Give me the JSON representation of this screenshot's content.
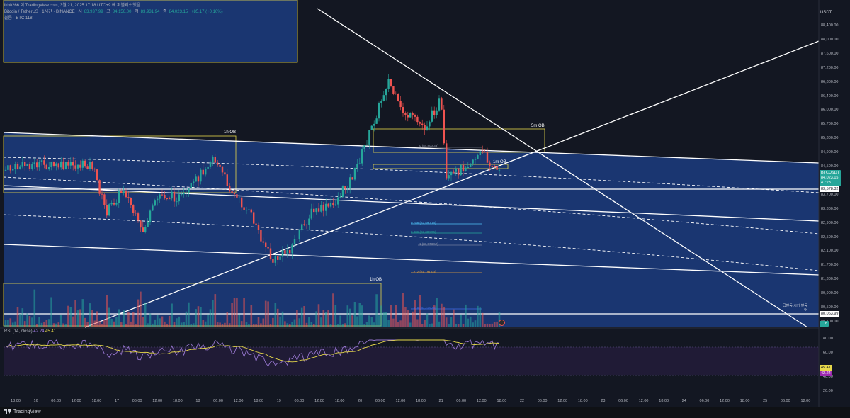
{
  "header": {
    "title": "lkb0266 이 TradingView.com, 3월 21, 2025 17:18 UTC+9 에 퍼블리쉬했음",
    "symbol_line": "Bitcoin / TetherUS · 1시간 · BINANCE",
    "ohlc": [
      {
        "label": "시",
        "value": "83,937.99"
      },
      {
        "label": "고",
        "value": "84,156.00"
      },
      {
        "label": "저",
        "value": "83,931.94"
      },
      {
        "label": "종",
        "value": "84,023.15"
      }
    ],
    "change": "+85.17 (+0.10%)",
    "volume_line": "볼륨 · BTC  118"
  },
  "price_axis": {
    "currency": "USDT",
    "ticks": [
      "88,400.00",
      "88,000.00",
      "87,600.00",
      "87,200.00",
      "86,800.00",
      "86,400.00",
      "86,000.00",
      "85,700.00",
      "85,300.00",
      "84,900.00",
      "84,500.00",
      "84,100.00",
      "83,700.00",
      "83,300.00",
      "82,900.00",
      "82,500.00",
      "82,100.00",
      "81,700.00",
      "81,300.00",
      "80,900.00",
      "80,500.00",
      "80,100.00"
    ],
    "last_symbol": "BTCUSDT",
    "last_price": "84,023.15",
    "countdown": "41:23",
    "level_tag": "83,578.32",
    "level_tag2": "80,063.99",
    "volume_tag": "118"
  },
  "rsi": {
    "legend": "RSI (14, close)",
    "value1": "42.24",
    "value2": "45.41",
    "ticks": [
      "80.00",
      "60.00",
      "40.00",
      "20.00"
    ]
  },
  "time_axis": {
    "labels": [
      "18:00",
      "16",
      "06:00",
      "12:00",
      "18:00",
      "17",
      "06:00",
      "12:00",
      "18:00",
      "18",
      "06:00",
      "12:00",
      "18:00",
      "19",
      "06:00",
      "12:00",
      "18:00",
      "20",
      "06:00",
      "12:00",
      "18:00",
      "21",
      "06:00",
      "12:00",
      "18:00",
      "22",
      "06:00",
      "12:00",
      "18:00",
      "23",
      "06:00",
      "12:00",
      "18:00",
      "24",
      "06:00",
      "12:00",
      "18:00",
      "25",
      "06:00",
      "12:00"
    ]
  },
  "annotations": {
    "ob_1h_a": "1h OB",
    "ob_1h_b": "1h OB",
    "ob_5m": "5m OB",
    "ob_1m": "1m OB",
    "fib_0": "0 (84,800.33)",
    "fib_786": "0.786 (82,590.16)",
    "fib_886": "0.886 (82,308.96)",
    "fib_1": "1 (81,973.52)",
    "fib_1272": "1.272 (81,191.03)",
    "fib_1618": "1.618 (80,218.38)",
    "alarm": "급변동 시가 변동",
    "alarm_tf": "4h"
  },
  "footer": {
    "brand": "TradingView"
  },
  "colors": {
    "background": "#131722",
    "zone_blue": "#1c3a7a",
    "up": "#26a69a",
    "down": "#ef5350",
    "ob_yellow": "#e6d84a",
    "rsi_line": "#7e57c2",
    "rsi_ma": "#e6d84a"
  },
  "icons": [
    "tradingview-logo-icon",
    "replay-icon"
  ]
}
